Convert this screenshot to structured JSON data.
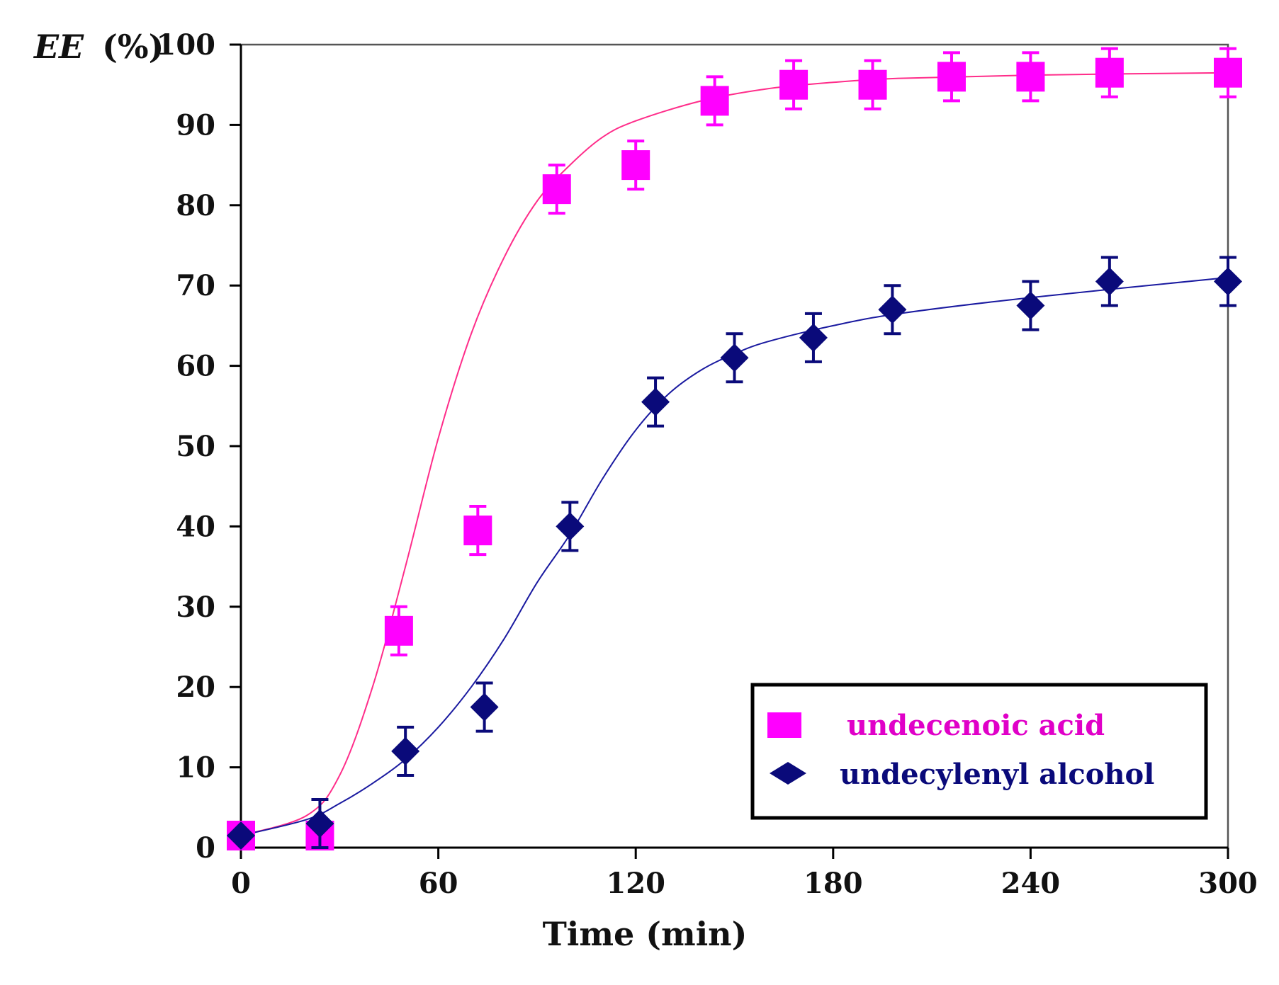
{
  "chart_data": {
    "type": "scatter",
    "title": "",
    "xlabel": "Time (min)",
    "ylabel_italic": "EE",
    "ylabel_unit": "(%)",
    "xlim": [
      0,
      300
    ],
    "ylim": [
      0,
      100
    ],
    "xticks": [
      0,
      60,
      120,
      180,
      240,
      300
    ],
    "yticks": [
      0,
      10,
      20,
      30,
      40,
      50,
      60,
      70,
      80,
      90,
      100
    ],
    "xtick_labels": [
      "0",
      "60",
      "120",
      "180",
      "240",
      "300"
    ],
    "ytick_labels": [
      "0",
      "10",
      "20",
      "30",
      "40",
      "50",
      "60",
      "70",
      "80",
      "90",
      "100"
    ],
    "legend_position": "bottom-right",
    "series": [
      {
        "name": "undecenoic acid",
        "marker": "square",
        "color": "#ff00ff",
        "line_color": "#ff2d8a",
        "x": [
          0,
          24,
          48,
          72,
          96,
          120,
          144,
          168,
          192,
          216,
          240,
          264,
          300
        ],
        "y": [
          1.5,
          1.5,
          27,
          39.5,
          82,
          85,
          93,
          95,
          95,
          96,
          96,
          96.5,
          96.5
        ],
        "error": [
          0,
          0,
          3,
          3,
          3,
          3,
          3,
          3,
          3,
          3,
          3,
          3,
          3
        ],
        "fit_x": [
          0,
          20,
          30,
          40,
          50,
          60,
          70,
          80,
          90,
          100,
          110,
          120,
          140,
          160,
          180,
          200,
          240,
          300
        ],
        "fit_y": [
          1.5,
          4,
          9,
          20,
          35,
          51,
          64,
          73.5,
          80.5,
          85,
          88.5,
          90.5,
          93,
          94.5,
          95.3,
          95.8,
          96.2,
          96.5
        ]
      },
      {
        "name": "undecylenyl alcohol",
        "marker": "diamond",
        "color": "#0a0a7a",
        "line_color": "#1a1aa0",
        "x": [
          0,
          24,
          50,
          74,
          100,
          126,
          150,
          174,
          198,
          240,
          264,
          300
        ],
        "y": [
          1.5,
          3,
          12,
          17.5,
          40,
          55.5,
          61,
          63.5,
          67,
          67.5,
          70.5,
          70.5
        ],
        "error": [
          0,
          3,
          3,
          3,
          3,
          3,
          3,
          3,
          3,
          3,
          3,
          3
        ],
        "fit_x": [
          0,
          20,
          30,
          40,
          50,
          60,
          70,
          80,
          90,
          100,
          110,
          120,
          130,
          140,
          150,
          160,
          180,
          200,
          240,
          300
        ],
        "fit_y": [
          1.5,
          3.5,
          5.5,
          8,
          11,
          15,
          20,
          26,
          33,
          39,
          46,
          52,
          56.5,
          59.5,
          61.5,
          63,
          65,
          66.5,
          68.5,
          71
        ]
      }
    ]
  }
}
